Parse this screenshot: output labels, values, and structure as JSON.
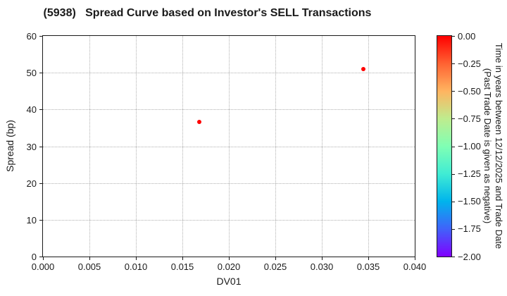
{
  "chart_data": {
    "type": "scatter",
    "title": "(5938)   Spread Curve based on Investor's SELL Transactions",
    "xlabel": "DV01",
    "ylabel": "Spread (bp)",
    "xlim": [
      0.0,
      0.04
    ],
    "ylim": [
      0,
      60
    ],
    "grid": true,
    "legend": "none",
    "xticks": {
      "values": [
        0.0,
        0.005,
        0.01,
        0.015,
        0.02,
        0.025,
        0.03,
        0.035,
        0.04
      ],
      "labels": [
        "0.000",
        "0.005",
        "0.010",
        "0.015",
        "0.020",
        "0.025",
        "0.030",
        "0.035",
        "0.040"
      ]
    },
    "yticks": {
      "values": [
        0,
        10,
        20,
        30,
        40,
        50,
        60
      ],
      "labels": [
        "0",
        "10",
        "20",
        "30",
        "40",
        "50",
        "60"
      ]
    },
    "points": [
      {
        "x": 0.0168,
        "y": 36.6,
        "color_value": 0.0
      },
      {
        "x": 0.0345,
        "y": 51.0,
        "color_value": 0.0
      }
    ],
    "marker_color": "#ff0000",
    "colorbar": {
      "title_line1": "Time in years between 12/12/2025 and Trade Date",
      "title_line2": "(Past Trade Date is given as negative)",
      "vmax": 0.0,
      "vmin": -2.0,
      "tick_labels": [
        "0.00",
        "−0.25",
        "−0.50",
        "−0.75",
        "−1.00",
        "−1.25",
        "−1.50",
        "−1.75",
        "−2.00"
      ],
      "colormap": "rainbow",
      "gradient_top_to_bottom": [
        "#ff0000",
        "#ff6232",
        "#ffb460",
        "#bfec8e",
        "#80ffb4",
        "#40ecd4",
        "#00b4ec",
        "#4062fa",
        "#8000ff"
      ]
    }
  }
}
